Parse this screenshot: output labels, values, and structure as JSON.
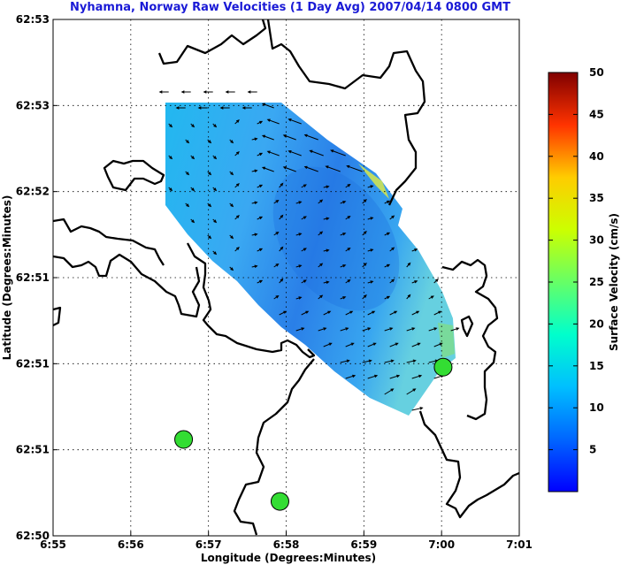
{
  "chart_data": {
    "type": "vector-field",
    "title": "Nyhamna, Norway Raw Velocities (1 Day Avg) 2007/04/14 0800 GMT",
    "xlabel": "Longitude (Degrees:Minutes)",
    "ylabel": "Latitude (Degrees:Minutes)",
    "x_ticks": [
      "6:55",
      "6:56",
      "6:57",
      "6:58",
      "6:59",
      "7:00",
      "7:01"
    ],
    "y_ticks": [
      "62:53",
      "62:53",
      "62:52",
      "62:51",
      "62:51",
      "62:51",
      "62:50"
    ],
    "xlim_minutes": [
      55,
      61
    ],
    "grid": true,
    "stations": [
      {
        "x": 56.68,
        "y": 0.56
      },
      {
        "x": 57.92,
        "y": 0.2
      },
      {
        "x": 60.02,
        "y": 0.98
      }
    ],
    "colorbar": {
      "label": "Surface Velocity (cm/s)",
      "range": [
        0,
        50
      ],
      "ticks": [
        "5",
        "10",
        "15",
        "20",
        "25",
        "30",
        "35",
        "40",
        "45",
        "50"
      ],
      "colormap": "jet"
    }
  }
}
